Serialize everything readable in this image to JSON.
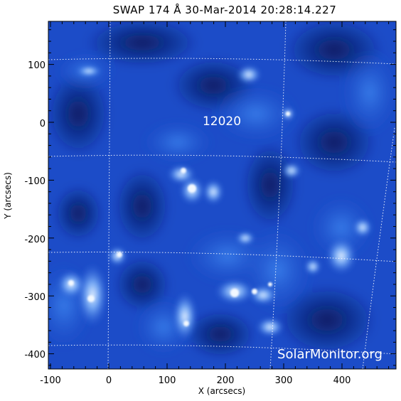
{
  "title": "SWAP 174 Å 30-Mar-2014 20:28:14.227",
  "x_axis": {
    "label": "X (arcsecs)",
    "ticks": [
      -100,
      0,
      100,
      200,
      300,
      400
    ]
  },
  "y_axis": {
    "label": "Y (arcsecs)",
    "ticks": [
      100,
      0,
      -100,
      -200,
      -300,
      -400
    ]
  },
  "region": {
    "label": "12020"
  },
  "watermark": "SolarMonitor.org",
  "colors": {
    "image_dark": "#0b1c66",
    "image_mid": "#1a4fd0",
    "image_bright": "#7fb6ff",
    "grid": "#ffffff"
  }
}
